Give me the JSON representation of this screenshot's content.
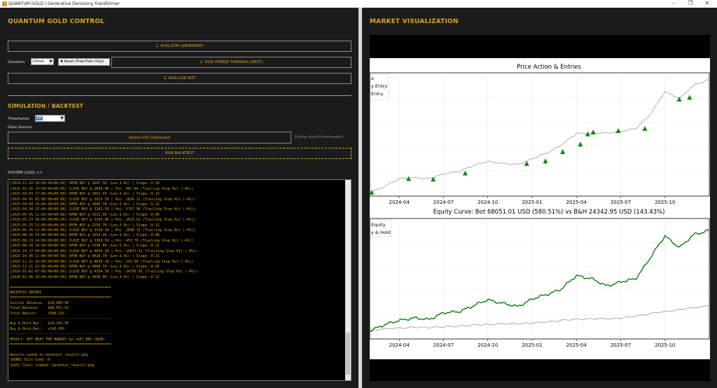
{
  "window": {
    "title": "QUANTUM GOLD | Generative Denoising Transformer"
  },
  "left": {
    "control_title": "QUANTUM GOLD CONTROL",
    "run_gym_label": "1. RUN GYM (GENERATE)",
    "duration_label": "Duration:",
    "duration_value": "10min",
    "reset_label": "Reset (Free-Train Only)",
    "hybrid_label": "2. RUN HYBRID TRAINING (BEST)",
    "live_label": "3. RUN LIVE BOT",
    "sim_title": "SIMULATION / BACKTEST",
    "timeframe_label": "Timeframe:",
    "timeframe_value": "1H",
    "datasource_label": "Data Source:",
    "select_csv_label": "Select CSV (Optional)",
    "auto_label": "[Using Auto-Downloader]",
    "run_backtest_label": "RUN BACKTEST",
    "logs_label": "SYSTEM LOGS >>",
    "log_text": "[2024-12-16 20:00:00+00:00] CLOSE BUY @ 2680.90 | PnL: 213.27 (Trailing Stop Hit (-4%))\n[2024-12-20 18:00:00+00:00] OPEN BUY @ 2647.30 (Lev:3.0x) | Slope:-0.10\n[2025-02-26 14:00:00+00:00] CLOSE BUY @ 2849.40 | PnL: 487.84 (Trailing Stop Hit (-4%))\n[2025-03-03 17:00:00+00:00] OPEN BUY @ 2901.50 (Lev:3.0x) | Slope:-0.13\n[2025-04-01 02:00:00+00:00] CLOSE BUY @ 3015.50 | PnL: 2834.11 (Trailing Stop Hit (-4%))\n[2025-04-09 10:00:00+00:00] OPEN BUY @ 3060.70 (Lev:3.0x) | Slope:-0.12\n[2025-04-30 22:00:00+00:00] CLOSE BUY @ 3282.50 | PnL: 5797.96 (Trailing Stop Hit (-4%))\n[2025-05-05 11:00:00+00:00] OPEN BUY @ 3321.90 (Lev:3.0x) | Slope:-0.06\n[2025-05-13 06:00:00+00:00] CLOSE BUY @ 3265.80 | PnL: 1615.52 (Trailing Stop Hit (-4%))\n[2025-05-15 12:00:00+00:00] OPEN BUY @ 3256.70 (Lev:3.0x) | Slope:-0.11\n[2025-06-25 13:00:00+00:00] CLOSE BUY @ 3328.20 | PnL: 2090.15 (Trailing Stop Hit (-4%))\n[2025-06-26 03:00:00+00:00] OPEN BUY @ 3353.00 (Lev:3.0x) | Slope:-0.08\n[2025-08-13 14:00:00+00:00] CLOSE BUY @ 3369.30 | PnL: 453.78 (Trailing Stop Hit (-4%))\n[2025-08-20 14:00:00+00:00] OPEN BUY @ 3398.00 (Lev:3.0x) | Slope:-0.12\n[2025-10-27 08:00:00+00:00] CLOSE BUY @ 4055.20 | PnL: 19627.31 (Trailing Stop Hit (-4%))\n[2025-10-30 11:00:00+00:00] OPEN BUY @ 4028.70 (Lev:3.0x) | Slope:-0.11\n[2025-11-21 10:00:00+00:00] CLOSE BUY @ 4034.10 | PnL: 232.99 (Trailing Stop Hit (-4%))\n[2025-11-21 15:00:00+00:00] OPEN BUY @ 4068.70 (Lev:3.0x) | Slope:-0.05\n[2026-01-02 07:00:00+00:00] CLOSE BUY @ 4334.30 | PnL: 14795.05 (Trailing Stop Hit (-4%))\n[2026-01-06 10:00:00+00:00] OPEN BUY @ 4499.90 (Lev:3.0x) | Slope:-0.12\n\n================================================\nBACKTEST REPORT\n================================================\nInitial Balance:  $10,000.00\nFinal Balance:    $68,051.01\nTotal Return:     +580.51%\n------------------------------------------------\nBuy & Hold Bal:   $24,342.95\nBuy & Hold Ret:   +143.43%\n------------------------------------------------\nRESULT: BOT BEAT THE MARKET by +437.08% (WIN)\n================================================\n\nResults saved to backtest_results.png\n[DONE] Exit Code: 0\n[GUI] Chart loaded: backtest_results.png"
  },
  "right": {
    "title": "MARKET VISUALIZATION",
    "chart_data": [
      {
        "type": "line",
        "title": "Price Action & Entries",
        "legend": [
          "e",
          "y Entry",
          "Entry"
        ],
        "legend_placement": "top-left",
        "x_ticks": [
          "2024-04",
          "2024-07",
          "2024-10",
          "2025-01",
          "2025-04",
          "2025-07",
          "2025-10"
        ],
        "x_range": [
          "2024-02",
          "2026-01"
        ],
        "y_range": [
          1950,
          4600
        ],
        "grid": true,
        "series": [
          {
            "color": "#bbbbbb",
            "values": [
              [
                "2024-02",
                2030
              ],
              [
                "2024-03",
                2150
              ],
              [
                "2024-04",
                2330
              ],
              [
                "2024-05",
                2340
              ],
              [
                "2024-06",
                2330
              ],
              [
                "2024-07",
                2420
              ],
              [
                "2024-08",
                2480
              ],
              [
                "2024-09",
                2600
              ],
              [
                "2024-10",
                2700
              ],
              [
                "2024-11",
                2650
              ],
              [
                "2024-12",
                2630
              ],
              [
                "2025-01",
                2750
              ],
              [
                "2025-02",
                2880
              ],
              [
                "2025-03",
                3050
              ],
              [
                "2025-04",
                3300
              ],
              [
                "2025-05",
                3300
              ],
              [
                "2025-06",
                3310
              ],
              [
                "2025-07",
                3340
              ],
              [
                "2025-08",
                3400
              ],
              [
                "2025-09",
                3700
              ],
              [
                "2025-10",
                4200
              ],
              [
                "2025-11",
                4050
              ],
              [
                "2025-12",
                4350
              ],
              [
                "2026-01",
                4450
              ]
            ]
          }
        ],
        "entries": [
          [
            "2024-02-05",
            2025
          ],
          [
            "2024-04-20",
            2320
          ],
          [
            "2024-06-10",
            2310
          ],
          [
            "2024-08-15",
            2440
          ],
          [
            "2024-12-20",
            2647
          ],
          [
            "2025-01-28",
            2700
          ],
          [
            "2025-03-03",
            2901
          ],
          [
            "2025-04-09",
            3060
          ],
          [
            "2025-04-24",
            3280
          ],
          [
            "2025-05-05",
            3321
          ],
          [
            "2025-06-26",
            3353
          ],
          [
            "2025-08-20",
            3398
          ],
          [
            "2025-10-30",
            4028
          ],
          [
            "2025-11-21",
            4068
          ]
        ],
        "entry_color": "#0a8a0a"
      },
      {
        "type": "line",
        "title": "Equity Curve: Bot 68051.01 USD (580.51%) vs B&H 24342.95 USD (143.43%)",
        "legend": [
          "Equity",
          "y & Hold"
        ],
        "legend_placement": "top-left",
        "x_ticks": [
          "2024-04",
          "2024-07",
          "2024-10",
          "2025-01",
          "2025-04",
          "2025-07",
          "2025-10"
        ],
        "x_range": [
          "2024-02",
          "2026-01"
        ],
        "y_range": [
          5000,
          75000
        ],
        "grid": true,
        "series": [
          {
            "color": "#0a7d0a",
            "values": [
              [
                "2024-02",
                10000
              ],
              [
                "2024-03",
                13000
              ],
              [
                "2024-04",
                16000
              ],
              [
                "2024-05",
                17000
              ],
              [
                "2024-06",
                16500
              ],
              [
                "2024-07",
                20000
              ],
              [
                "2024-08",
                21000
              ],
              [
                "2024-09",
                24000
              ],
              [
                "2024-10",
                28000
              ],
              [
                "2024-11",
                25500
              ],
              [
                "2024-12",
                24000
              ],
              [
                "2025-01",
                28000
              ],
              [
                "2025-02",
                31000
              ],
              [
                "2025-03",
                34000
              ],
              [
                "2025-04",
                42000
              ],
              [
                "2025-05",
                40000
              ],
              [
                "2025-06",
                36000
              ],
              [
                "2025-07",
                38000
              ],
              [
                "2025-08",
                40000
              ],
              [
                "2025-09",
                52000
              ],
              [
                "2025-10",
                65000
              ],
              [
                "2025-11",
                58000
              ],
              [
                "2025-12",
                66000
              ],
              [
                "2026-01",
                68051
              ]
            ]
          },
          {
            "color": "#aaaaaa",
            "values": [
              [
                "2024-02",
                10000
              ],
              [
                "2024-04",
                11500
              ],
              [
                "2024-07",
                12000
              ],
              [
                "2024-10",
                13500
              ],
              [
                "2025-01",
                14200
              ],
              [
                "2025-04",
                16500
              ],
              [
                "2025-07",
                17000
              ],
              [
                "2025-10",
                21000
              ],
              [
                "2026-01",
                24343
              ]
            ]
          }
        ]
      }
    ]
  }
}
